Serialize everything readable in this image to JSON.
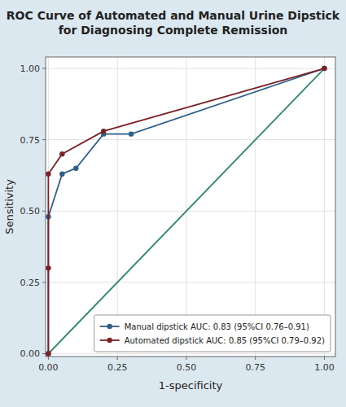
{
  "chart_data": {
    "type": "line",
    "title": "ROC Curve of Automated and Manual Urine Dipstick\nfor Diagnosing Complete Remission",
    "x_label": "1-specificity",
    "y_label": "Sensitivity",
    "series": [
      {
        "color": "#2e8a6a",
        "line_style": "solid",
        "x": [
          0.0,
          1.0
        ],
        "values": [
          0.0,
          1.0
        ]
      },
      {
        "name": "Manual dipstick AUC: 0.83 (95%CI 0.76–0.91)",
        "color": "#2e5f8a",
        "marker": "circle",
        "line_style": "solid",
        "x": [
          0.0,
          0.0,
          0.05,
          0.1,
          0.2,
          0.3,
          1.0
        ],
        "values": [
          0.0,
          0.48,
          0.63,
          0.65,
          0.77,
          0.77,
          1.0
        ]
      },
      {
        "name": "Automated dipstick AUC: 0.85 (95%CI 0.79–0.92)",
        "color": "#7b2226",
        "marker": "circle",
        "line_style": "solid",
        "x": [
          0.0,
          0.0,
          0.0,
          0.05,
          0.2,
          1.0
        ],
        "values": [
          0.0,
          0.3,
          0.63,
          0.7,
          0.78,
          1.0
        ]
      }
    ],
    "xlim": [
      -0.01,
      1.04
    ],
    "ylim": [
      -0.01,
      1.04
    ],
    "xticks": [
      {
        "value": 0.0,
        "label": "0.00"
      },
      0.25,
      {
        "value": 0.5,
        "label": "0.50"
      },
      0.75,
      {
        "value": 1.0,
        "label": "1.00"
      }
    ],
    "yticks": [
      {
        "value": 0.0,
        "label": "0.00"
      },
      0.25,
      {
        "value": 0.5,
        "label": "0.50"
      },
      0.75,
      {
        "value": 1.0,
        "label": "1.00"
      }
    ],
    "grid": true,
    "legend": "lower right"
  }
}
